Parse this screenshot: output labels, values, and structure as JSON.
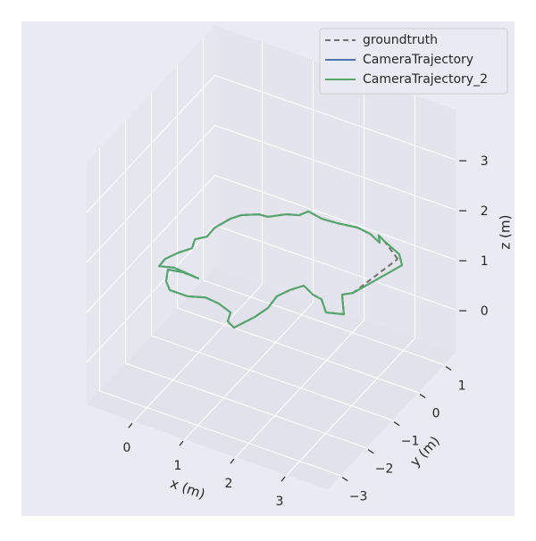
{
  "chart_data": {
    "type": "line3d",
    "xlabel": "x (m)",
    "ylabel": "y (m)",
    "zlabel": "z (m)",
    "xlim": [
      -0.93,
      3.8
    ],
    "ylim": [
      -3.5,
      1.45
    ],
    "zlim": [
      -0.85,
      4.0
    ],
    "xticks": [
      0,
      1,
      2,
      3
    ],
    "yticks": [
      {
        "value": -3,
        "label": "−3"
      },
      {
        "value": -2,
        "label": "−2"
      },
      {
        "value": -1,
        "label": "−1"
      },
      0,
      1
    ],
    "zticks": [
      0,
      1,
      2,
      3
    ],
    "grid": true,
    "legend": "upper right",
    "series": [
      {
        "name": "groundtruth",
        "color": "#6e6e6e",
        "linestyle": "dashed",
        "x": [
          2.93,
          2.48,
          2.32,
          2.44,
          2.18,
          1.9,
          1.55,
          1.25,
          0.95,
          0.87,
          0.66,
          0.43,
          0.26,
          0.01,
          -0.1,
          -0.21,
          -0.2,
          -0.34,
          -0.26,
          -0.4,
          -0.51,
          -0.5,
          -0.25,
          0.25,
          -0.06,
          -0.32,
          -0.19,
          -0.01,
          0.34,
          0.62,
          0.9,
          1.2,
          1.28,
          1.46,
          1.62,
          1.69,
          1.66,
          1.77,
          1.91,
          2.17,
          2.36,
          2.61,
          2.9,
          2.6,
          2.74,
          2.93
        ],
        "y": [
          0.92,
          1.28,
          1.38,
          1.19,
          1.34,
          1.39,
          1.32,
          1.29,
          1.36,
          1.17,
          1.07,
          0.83,
          0.81,
          0.62,
          0.42,
          0.02,
          -0.29,
          -0.48,
          -0.75,
          -1.0,
          -1.3,
          -1.55,
          -1.45,
          -1.51,
          -1.49,
          -1.56,
          -1.89,
          -2.1,
          -2.1,
          -1.96,
          -2.0,
          -2.13,
          -2.4,
          -2.51,
          -2.02,
          -1.65,
          -1.25,
          -0.95,
          -0.7,
          -0.86,
          -0.9,
          -1.22,
          -1.1,
          -0.58,
          -0.43,
          0.92
        ],
        "z": [
          1,
          1,
          1,
          1,
          1,
          1,
          1,
          1,
          1,
          1,
          1,
          1,
          1,
          1,
          1,
          1,
          1,
          1,
          1,
          1,
          1,
          1,
          1,
          1,
          1,
          1,
          1,
          1,
          1,
          1,
          1,
          1,
          1,
          1,
          1,
          1,
          1,
          1,
          1,
          1,
          1,
          1,
          1,
          1,
          1,
          1
        ]
      },
      {
        "name": "CameraTrajectory",
        "color": "#4c72b0",
        "linestyle": "solid",
        "x": [
          2.74,
          3.08,
          2.89,
          2.48,
          2.32,
          2.44,
          2.18,
          1.9,
          1.55,
          1.25,
          0.95,
          0.87,
          0.66,
          0.43,
          0.26,
          0.01,
          -0.1,
          -0.21,
          -0.2,
          -0.34,
          -0.26,
          -0.4,
          -0.51,
          -0.5,
          -0.25,
          0.25,
          -0.06,
          -0.32,
          -0.19,
          -0.01,
          0.34,
          0.62,
          0.9,
          1.2,
          1.28,
          1.46,
          1.62,
          1.69,
          1.66,
          1.77,
          1.91,
          2.17,
          2.36,
          2.61,
          2.9,
          2.6,
          2.74
        ],
        "y": [
          -0.43,
          0.79,
          1.06,
          1.28,
          1.38,
          1.19,
          1.34,
          1.39,
          1.32,
          1.29,
          1.36,
          1.17,
          1.07,
          0.83,
          0.81,
          0.62,
          0.42,
          0.02,
          -0.29,
          -0.48,
          -0.75,
          -1.0,
          -1.3,
          -1.55,
          -1.45,
          -1.51,
          -1.49,
          -1.56,
          -1.89,
          -2.1,
          -2.1,
          -1.96,
          -2.0,
          -2.13,
          -2.4,
          -2.51,
          -2.02,
          -1.65,
          -1.25,
          -0.95,
          -0.7,
          -0.86,
          -0.9,
          -1.22,
          -1.1,
          -0.58,
          -0.43
        ],
        "z": [
          1,
          1,
          1,
          1,
          1,
          1,
          1,
          1,
          1,
          1,
          1,
          1,
          1,
          1,
          1,
          1,
          1,
          1,
          1,
          1,
          1,
          1,
          1,
          1,
          1,
          1,
          1,
          1,
          1,
          1,
          1,
          1,
          1,
          1,
          1,
          1,
          1,
          1,
          1,
          1,
          1,
          1,
          1,
          1,
          1,
          1,
          1
        ]
      },
      {
        "name": "CameraTrajectory_2",
        "color": "#55a868",
        "linestyle": "solid",
        "x": [
          2.74,
          3.08,
          2.89,
          2.48,
          2.32,
          2.44,
          2.18,
          1.9,
          1.55,
          1.25,
          0.95,
          0.87,
          0.66,
          0.43,
          0.26,
          0.01,
          -0.1,
          -0.21,
          -0.2,
          -0.34,
          -0.26,
          -0.4,
          -0.51,
          -0.5,
          -0.25,
          0.25,
          -0.06,
          -0.32,
          -0.19,
          -0.01,
          0.34,
          0.62,
          0.9,
          1.2,
          1.28,
          1.46,
          1.62,
          1.69,
          1.66,
          1.77,
          1.91,
          2.17,
          2.36,
          2.61,
          2.9,
          2.6,
          2.74
        ],
        "y": [
          -0.43,
          0.79,
          1.06,
          1.28,
          1.38,
          1.19,
          1.34,
          1.39,
          1.32,
          1.29,
          1.36,
          1.17,
          1.07,
          0.83,
          0.81,
          0.62,
          0.42,
          0.02,
          -0.29,
          -0.48,
          -0.75,
          -1.0,
          -1.3,
          -1.55,
          -1.45,
          -1.51,
          -1.49,
          -1.56,
          -1.89,
          -2.1,
          -2.1,
          -1.96,
          -2.0,
          -2.13,
          -2.4,
          -2.51,
          -2.02,
          -1.65,
          -1.25,
          -0.95,
          -0.7,
          -0.86,
          -0.9,
          -1.22,
          -1.1,
          -0.58,
          -0.43
        ],
        "z": [
          1,
          1,
          1,
          1,
          1,
          1,
          1,
          1,
          1,
          1,
          1,
          1,
          1,
          1,
          1,
          1,
          1,
          1,
          1,
          1,
          1,
          1,
          1,
          1,
          1,
          1,
          1,
          1,
          1,
          1,
          1,
          1,
          1,
          1,
          1,
          1,
          1,
          1,
          1,
          1,
          1,
          1,
          1,
          1,
          1,
          1,
          1
        ]
      }
    ]
  }
}
